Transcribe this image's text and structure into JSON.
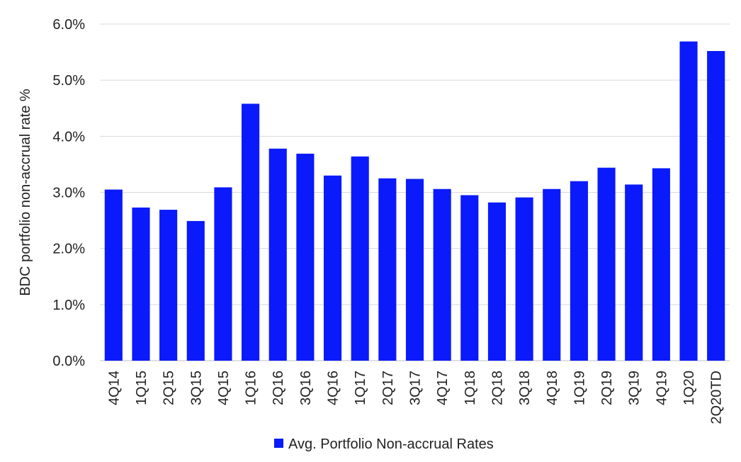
{
  "chart_data": {
    "type": "bar",
    "categories": [
      "4Q14",
      "1Q15",
      "2Q15",
      "3Q15",
      "4Q15",
      "1Q16",
      "2Q16",
      "3Q16",
      "4Q16",
      "1Q17",
      "2Q17",
      "3Q17",
      "4Q17",
      "1Q18",
      "2Q18",
      "3Q18",
      "4Q18",
      "1Q19",
      "2Q19",
      "3Q19",
      "4Q19",
      "1Q20",
      "2Q20TD"
    ],
    "series": [
      {
        "name": "Avg. Portfolio Non-accrual Rates",
        "color": "#0a1afa",
        "values": [
          3.05,
          2.73,
          2.69,
          2.49,
          3.09,
          4.58,
          3.78,
          3.69,
          3.3,
          3.64,
          3.25,
          3.24,
          3.06,
          2.95,
          2.82,
          2.91,
          3.06,
          3.2,
          3.44,
          3.14,
          3.43,
          5.69,
          5.52
        ]
      }
    ],
    "ylabel": "BDC portfolio non-accrual rate %",
    "xlabel": "",
    "ylim": [
      0,
      6
    ],
    "yticks": [
      "0.0%",
      "1.0%",
      "2.0%",
      "3.0%",
      "4.0%",
      "5.0%",
      "6.0%"
    ],
    "grid": "horizontal",
    "legend_position": "bottom-center"
  }
}
